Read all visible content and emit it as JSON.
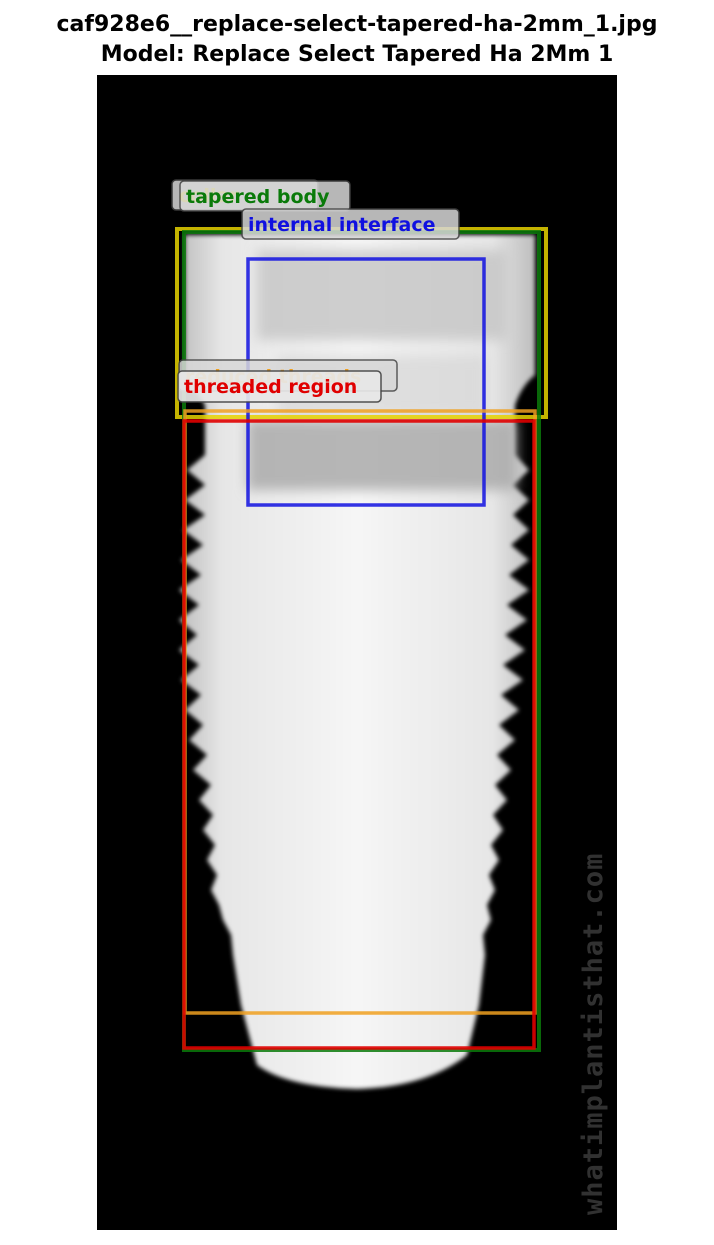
{
  "header": {
    "filename": "caf928e6__replace-select-tapered-ha-2mm_1.jpg",
    "model_line": "Model: Replace Select Tapered Ha 2Mm 1"
  },
  "image": {
    "subject": "dental-implant-radiograph",
    "watermark": "whatimplantisthat.com"
  },
  "annotations": [
    {
      "label": "collar",
      "color": "#e6d200"
    },
    {
      "label": "tapered body",
      "color": "#0a7a0a"
    },
    {
      "label": "internal interface",
      "color": "#1010e0"
    },
    {
      "label": "reduced threads",
      "color": "#f0a020"
    },
    {
      "label": "threaded region",
      "color": "#e00000"
    }
  ]
}
